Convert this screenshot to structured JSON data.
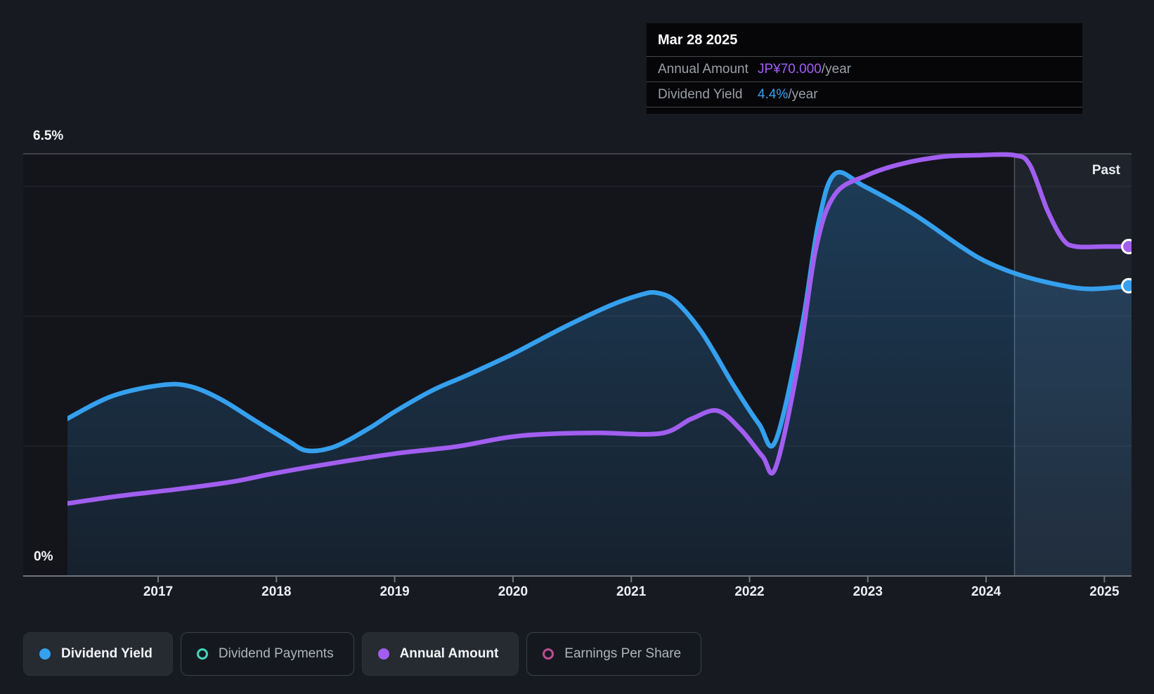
{
  "tooltip": {
    "date": "Mar 28 2025",
    "rows": [
      {
        "label": "Annual Amount",
        "value": "JP¥70.000",
        "suffix": "/year",
        "color": "#A15EF0"
      },
      {
        "label": "Dividend Yield",
        "value": "4.4%",
        "suffix": "/year",
        "color": "#35A0EE"
      }
    ]
  },
  "labels": {
    "y_top": "6.5%",
    "y_bottom": "0%",
    "past": "Past"
  },
  "legend": {
    "items": [
      {
        "label": "Dividend Yield",
        "color": "#35A0EE",
        "style": "filled",
        "active": true
      },
      {
        "label": "Dividend Payments",
        "color": "#45D4C0",
        "style": "outline",
        "active": false
      },
      {
        "label": "Annual Amount",
        "color": "#A15EF0",
        "style": "filled",
        "active": true
      },
      {
        "label": "Earnings Per Share",
        "color": "#BC4D92",
        "style": "outline",
        "active": false
      }
    ]
  },
  "colors": {
    "background": "#171A21",
    "blue": "#35A0EE",
    "purple": "#A15EF0",
    "axis": "#70767E",
    "grid_bright": "rgba(225,232,240,0.28)",
    "grid_dim": "rgba(225,232,240,0.09)",
    "past_band": "rgba(148,186,233,0.085)",
    "past_edge": "rgba(200,220,240,0.30)"
  },
  "chart_data": {
    "type": "line",
    "title": "Dividend history",
    "x_axis": {
      "ticks": [
        2017,
        2018,
        2019,
        2020,
        2021,
        2022,
        2023,
        2024,
        2025
      ]
    },
    "y_axis": {
      "min": 0,
      "max": 6.5,
      "label_top": "6.5%",
      "label_bottom": "0%",
      "gridlines_pct": [
        6.5,
        6,
        4,
        2
      ],
      "unit": "%"
    },
    "past_region": {
      "from_x": 2024.24,
      "to_x": 2025.23
    },
    "series": [
      {
        "name": "Dividend Yield",
        "unit": "%",
        "color": "#35A0EE",
        "area": true,
        "endpoint_dot": true,
        "points": [
          [
            2016.23,
            2.42
          ],
          [
            2016.61,
            2.77
          ],
          [
            2017.03,
            2.94
          ],
          [
            2017.27,
            2.92
          ],
          [
            2017.53,
            2.72
          ],
          [
            2017.83,
            2.38
          ],
          [
            2018.1,
            2.08
          ],
          [
            2018.26,
            1.93
          ],
          [
            2018.49,
            1.99
          ],
          [
            2018.78,
            2.27
          ],
          [
            2019.0,
            2.53
          ],
          [
            2019.32,
            2.86
          ],
          [
            2019.61,
            3.09
          ],
          [
            2020.0,
            3.42
          ],
          [
            2020.42,
            3.82
          ],
          [
            2020.83,
            4.17
          ],
          [
            2021.08,
            4.33
          ],
          [
            2021.22,
            4.36
          ],
          [
            2021.38,
            4.22
          ],
          [
            2021.6,
            3.74
          ],
          [
            2021.87,
            2.92
          ],
          [
            2022.08,
            2.34
          ],
          [
            2022.22,
            2.08
          ],
          [
            2022.44,
            3.82
          ],
          [
            2022.58,
            5.41
          ],
          [
            2022.72,
            6.19
          ],
          [
            2022.97,
            6.0
          ],
          [
            2023.39,
            5.57
          ],
          [
            2023.78,
            5.08
          ],
          [
            2023.99,
            4.85
          ],
          [
            2024.26,
            4.65
          ],
          [
            2024.57,
            4.5
          ],
          [
            2024.87,
            4.42
          ],
          [
            2025.23,
            4.47
          ]
        ]
      },
      {
        "name": "Annual Amount",
        "unit": "JP¥/year",
        "color": "#A15EF0",
        "area": false,
        "endpoint_dot": true,
        "points": [
          [
            2016.23,
            15.4
          ],
          [
            2016.67,
            17.0
          ],
          [
            2017.15,
            18.4
          ],
          [
            2017.62,
            20.0
          ],
          [
            2018.0,
            21.9
          ],
          [
            2018.46,
            23.9
          ],
          [
            2019.0,
            26.0
          ],
          [
            2019.52,
            27.5
          ],
          [
            2019.94,
            29.4
          ],
          [
            2020.24,
            30.1
          ],
          [
            2020.71,
            30.4
          ],
          [
            2021.25,
            30.3
          ],
          [
            2021.51,
            33.4
          ],
          [
            2021.73,
            35.1
          ],
          [
            2021.93,
            31.0
          ],
          [
            2022.11,
            25.4
          ],
          [
            2022.22,
            23.0
          ],
          [
            2022.41,
            44.8
          ],
          [
            2022.56,
            69.4
          ],
          [
            2022.72,
            81.0
          ],
          [
            2022.99,
            85.1
          ],
          [
            2023.29,
            87.6
          ],
          [
            2023.63,
            89.1
          ],
          [
            2023.92,
            89.4
          ],
          [
            2024.24,
            89.4
          ],
          [
            2024.37,
            87.3
          ],
          [
            2024.52,
            77.6
          ],
          [
            2024.65,
            71.5
          ],
          [
            2024.76,
            70.0
          ],
          [
            2025.0,
            70.0
          ],
          [
            2025.23,
            70.0
          ]
        ]
      }
    ]
  }
}
